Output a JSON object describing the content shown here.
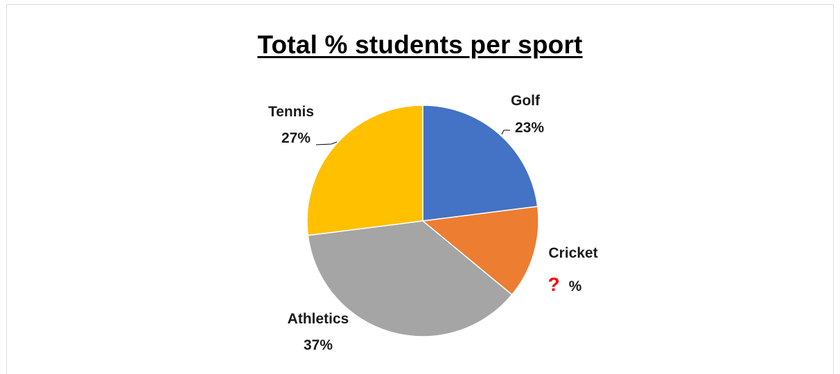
{
  "chart_data": {
    "type": "pie",
    "title": "Total % students per sport",
    "slices": [
      {
        "label": "Golf",
        "value": 23,
        "display": "23%",
        "color": "#4472c4"
      },
      {
        "label": "Cricket",
        "value": 13,
        "display": "%",
        "unknown_mark": "?",
        "color": "#ed7d31"
      },
      {
        "label": "Athletics",
        "value": 37,
        "display": "37%",
        "color": "#a5a5a5"
      },
      {
        "label": "Tennis",
        "value": 27,
        "display": "27%",
        "color": "#ffc000"
      }
    ],
    "colors": {
      "unknown_mark": "#ff0000",
      "leader_line": "#000000"
    }
  }
}
